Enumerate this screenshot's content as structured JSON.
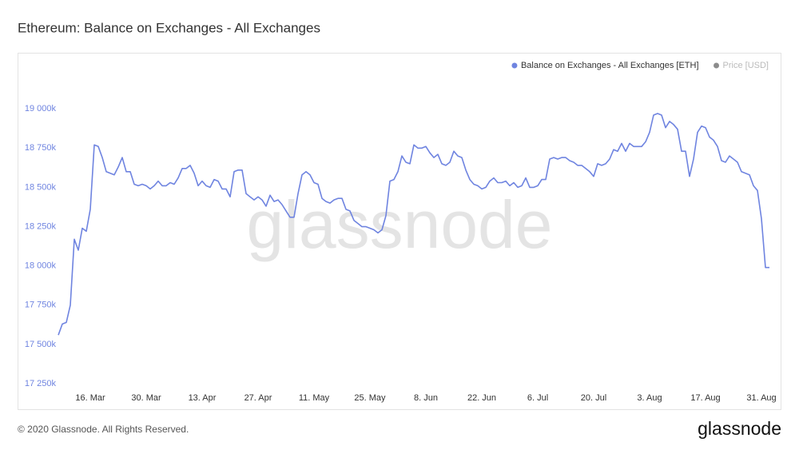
{
  "chart_data": {
    "type": "line",
    "title": "Ethereum: Balance on Exchanges - All Exchanges",
    "watermark": "glassnode",
    "footer": "© 2020 Glassnode. All Rights Reserved.",
    "logo": "glassnode",
    "categories": [
      null,
      null,
      null,
      null,
      null,
      null,
      null,
      null,
      "16. Mar",
      null,
      null,
      null,
      null,
      null,
      null,
      null,
      null,
      null,
      null,
      null,
      null,
      null,
      "30. Mar",
      null,
      null,
      null,
      null,
      null,
      null,
      null,
      null,
      null,
      null,
      null,
      null,
      null,
      "13. Apr",
      null,
      null,
      null,
      null,
      null,
      null,
      null,
      null,
      null,
      null,
      null,
      null,
      null,
      "27. Apr",
      null,
      null,
      null,
      null,
      null,
      null,
      null,
      null,
      null,
      null,
      null,
      null,
      null,
      "11. May",
      null,
      null,
      null,
      null,
      null,
      null,
      null,
      null,
      null,
      null,
      null,
      null,
      null,
      "25. May",
      null,
      null,
      null,
      null,
      null,
      null,
      null,
      null,
      null,
      null,
      null,
      null,
      null,
      "8. Jun",
      null,
      null,
      null,
      null,
      null,
      null,
      null,
      null,
      null,
      null,
      null,
      null,
      null,
      "22. Jun",
      null,
      null,
      null,
      null,
      null,
      null,
      null,
      null,
      null,
      null,
      null,
      null,
      null,
      "6. Jul",
      null,
      null,
      null,
      null,
      null,
      null,
      null,
      null,
      null,
      null,
      null,
      null,
      null,
      "20. Jul",
      null,
      null,
      null,
      null,
      null,
      null,
      null,
      null,
      null,
      null,
      null,
      null,
      null,
      "3. Aug",
      null,
      null,
      null,
      null,
      null,
      null,
      null,
      null,
      null,
      null,
      null,
      null,
      null,
      "17. Aug",
      null,
      null,
      null,
      null,
      null,
      null,
      null,
      null,
      null,
      null,
      null,
      null,
      null,
      "31. Aug",
      null,
      null
    ],
    "series": [
      {
        "name": "Balance on Exchanges - All Exchanges [ETH]",
        "color": "#6f84e0",
        "values": [
          17560000,
          17630000,
          17640000,
          17750000,
          18170000,
          18100000,
          18240000,
          18220000,
          18360000,
          18770000,
          18760000,
          18690000,
          18600000,
          18590000,
          18580000,
          18630000,
          18690000,
          18600000,
          18600000,
          18520000,
          18510000,
          18520000,
          18510000,
          18490000,
          18510000,
          18540000,
          18510000,
          18510000,
          18530000,
          18520000,
          18560000,
          18620000,
          18620000,
          18640000,
          18590000,
          18510000,
          18540000,
          18510000,
          18500000,
          18550000,
          18540000,
          18490000,
          18490000,
          18440000,
          18600000,
          18610000,
          18610000,
          18460000,
          18440000,
          18420000,
          18440000,
          18420000,
          18380000,
          18450000,
          18410000,
          18420000,
          18390000,
          18350000,
          18310000,
          18310000,
          18460000,
          18580000,
          18600000,
          18580000,
          18530000,
          18520000,
          18430000,
          18410000,
          18400000,
          18420000,
          18430000,
          18430000,
          18360000,
          18350000,
          18290000,
          18270000,
          18250000,
          18250000,
          18240000,
          18230000,
          18210000,
          18230000,
          18320000,
          18540000,
          18550000,
          18600000,
          18700000,
          18660000,
          18650000,
          18770000,
          18750000,
          18750000,
          18760000,
          18720000,
          18690000,
          18710000,
          18650000,
          18640000,
          18660000,
          18730000,
          18700000,
          18690000,
          18610000,
          18550000,
          18520000,
          18510000,
          18490000,
          18500000,
          18540000,
          18560000,
          18530000,
          18530000,
          18540000,
          18510000,
          18530000,
          18500000,
          18510000,
          18560000,
          18500000,
          18500000,
          18510000,
          18550000,
          18550000,
          18680000,
          18690000,
          18680000,
          18690000,
          18690000,
          18670000,
          18660000,
          18640000,
          18640000,
          18620000,
          18600000,
          18570000,
          18650000,
          18640000,
          18650000,
          18680000,
          18740000,
          18730000,
          18780000,
          18730000,
          18780000,
          18760000,
          18760000,
          18760000,
          18790000,
          18850000,
          18960000,
          18970000,
          18960000,
          18880000,
          18920000,
          18900000,
          18870000,
          18730000,
          18730000,
          18570000,
          18680000,
          18850000,
          18890000,
          18880000,
          18820000,
          18800000,
          18760000,
          18670000,
          18660000,
          18700000,
          18680000,
          18660000,
          18600000,
          18590000,
          18580000,
          18510000,
          18480000,
          18300000,
          17990000,
          17990000
        ]
      },
      {
        "name": "Price [USD]",
        "color": "#8c8c8c",
        "visible": false
      }
    ],
    "ylim": [
      17220000,
      19250000
    ],
    "yticks": [
      {
        "value": 17250000,
        "label": "17 250k"
      },
      {
        "value": 17500000,
        "label": "17 500k"
      },
      {
        "value": 17750000,
        "label": "17 750k"
      },
      {
        "value": 18000000,
        "label": "18 000k"
      },
      {
        "value": 18250000,
        "label": "18 250k"
      },
      {
        "value": 18500000,
        "label": "18 500k"
      },
      {
        "value": 18750000,
        "label": "18 750k"
      },
      {
        "value": 19000000,
        "label": "19 000k"
      }
    ],
    "grid": false,
    "legend": "top-right",
    "tick_color": "#6f84e0"
  }
}
